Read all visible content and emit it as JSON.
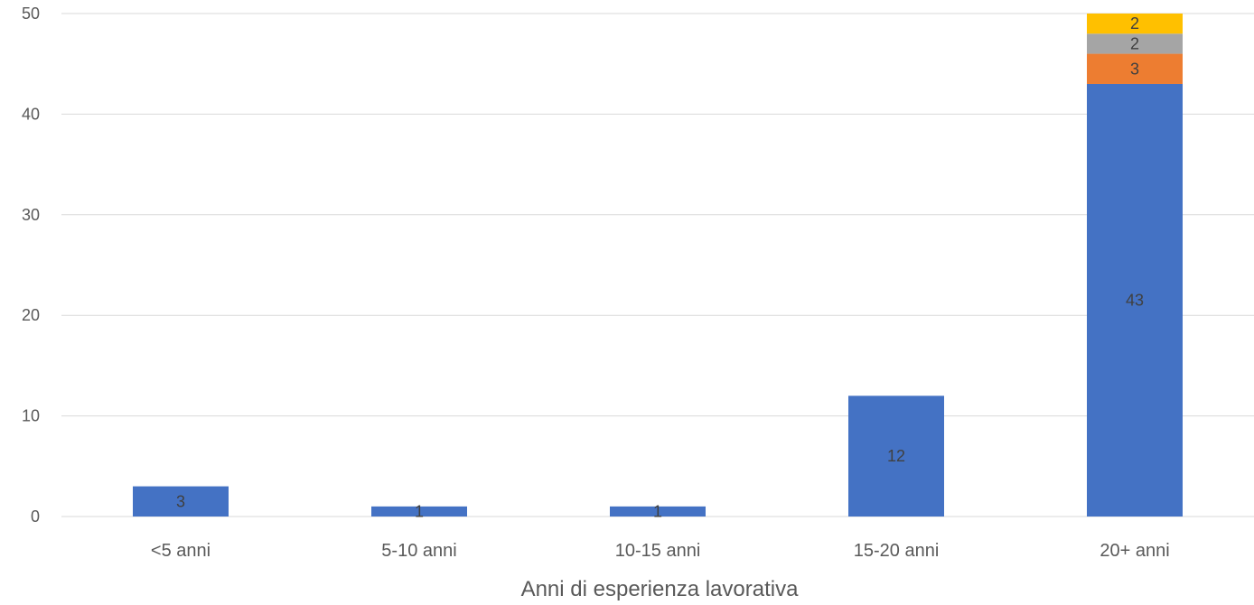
{
  "chart_data": {
    "type": "bar",
    "stacked": true,
    "title": "",
    "xlabel": "Anni di esperienza lavorativa",
    "ylabel": "",
    "categories": [
      "<5 anni",
      "5-10 anni",
      "10-15 anni",
      "15-20 anni",
      "20+ anni"
    ],
    "ylim": [
      0,
      50
    ],
    "yticks": [
      0,
      10,
      20,
      30,
      40,
      50
    ],
    "grid": true,
    "legend": "none",
    "series": [
      {
        "values": [
          3,
          1,
          1,
          12,
          43
        ],
        "color": "#4472C4"
      },
      {
        "values": [
          0,
          0,
          0,
          0,
          3
        ],
        "color": "#ED7D31"
      },
      {
        "values": [
          0,
          0,
          0,
          0,
          2
        ],
        "color": "#A5A5A5"
      },
      {
        "values": [
          0,
          0,
          0,
          0,
          2
        ],
        "color": "#FFC000"
      }
    ],
    "colors": {
      "gridline": "#D9D9D9",
      "axis_text": "#595959",
      "data_label_text": "#404040"
    }
  }
}
